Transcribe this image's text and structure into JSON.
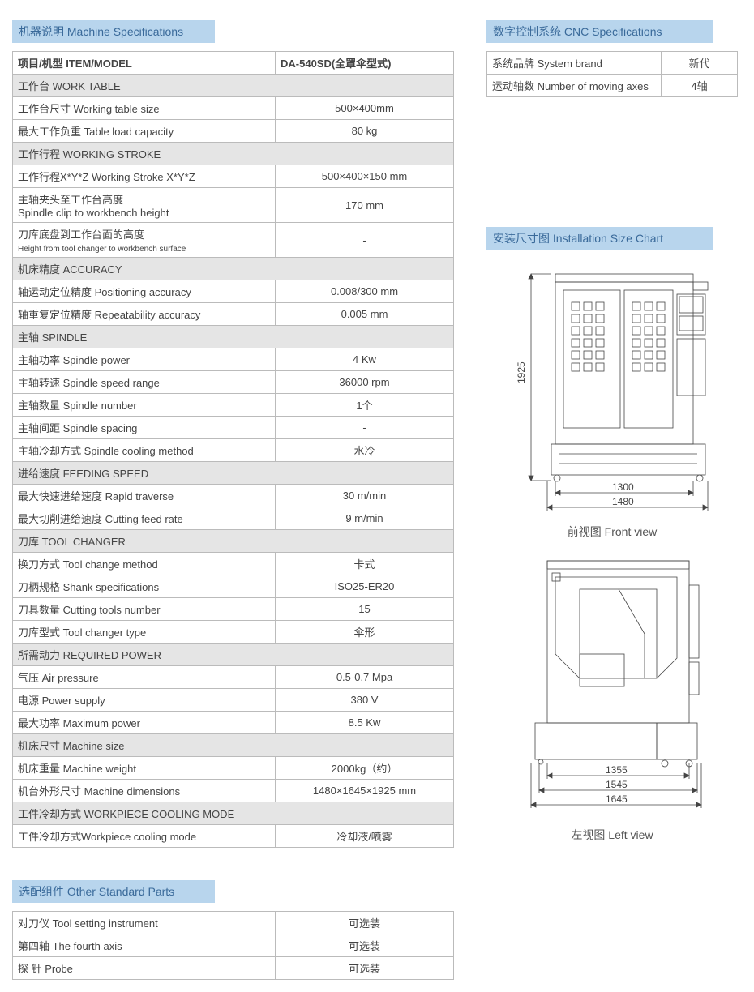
{
  "titles": {
    "machine_spec": "机器说明  Machine Specifications",
    "cnc_spec": "数字控制系统 CNC Specifications",
    "install_chart": "安装尺寸图  Installation Size Chart",
    "other_parts": "选配组件  Other Standard Parts"
  },
  "spec_header": {
    "item": "项目/机型 ITEM/MODEL",
    "model": "DA-540SD(全罩伞型式)"
  },
  "spec_sections": [
    {
      "title": "工作台 WORK TABLE",
      "rows": [
        {
          "label": "工作台尺寸 Working table size",
          "val": "500×400mm"
        },
        {
          "label": "最大工作负重 Table load capacity",
          "val": "80 kg"
        }
      ]
    },
    {
      "title": "工作行程 WORKING STROKE",
      "rows": [
        {
          "label": "工作行程X*Y*Z Working Stroke X*Y*Z",
          "val": "500×400×150 mm"
        },
        {
          "label": "主轴夹头至工作台高度\nSpindle clip to workbench height",
          "val": "170 mm"
        },
        {
          "label": "刀库底盘到工作台面的高度\nHeight from tool changer to workbench surface",
          "val": "-",
          "small": true
        }
      ]
    },
    {
      "title": "机床精度 ACCURACY",
      "rows": [
        {
          "label": "轴运动定位精度 Positioning accuracy",
          "val": "0.008/300 mm"
        },
        {
          "label": "轴重复定位精度 Repeatability accuracy",
          "val": "0.005 mm"
        }
      ]
    },
    {
      "title": "主轴 SPINDLE",
      "rows": [
        {
          "label": "主轴功率 Spindle power",
          "val": "4 Kw"
        },
        {
          "label": "主轴转速 Spindle speed range",
          "val": "36000 rpm"
        },
        {
          "label": "主轴数量 Spindle number",
          "val": "1个"
        },
        {
          "label": "主轴间距 Spindle spacing",
          "val": "-"
        },
        {
          "label": "主轴冷却方式 Spindle cooling method",
          "val": "水冷"
        }
      ]
    },
    {
      "title": "进给速度 FEEDING SPEED",
      "rows": [
        {
          "label": "最大快速进给速度 Rapid traverse",
          "val": "30 m/min"
        },
        {
          "label": "最大切削进给速度 Cutting feed rate",
          "val": "9 m/min"
        }
      ]
    },
    {
      "title": "刀库 TOOL CHANGER",
      "rows": [
        {
          "label": "换刀方式 Tool change method",
          "val": "卡式"
        },
        {
          "label": "刀柄规格 Shank specifications",
          "val": "ISO25-ER20"
        },
        {
          "label": "刀具数量 Cutting tools number",
          "val": "15"
        },
        {
          "label": "刀库型式 Tool changer type",
          "val": "伞形"
        }
      ]
    },
    {
      "title": "所需动力 REQUIRED POWER",
      "rows": [
        {
          "label": "气压 Air pressure",
          "val": "0.5-0.7 Mpa"
        },
        {
          "label": "电源 Power supply",
          "val": "380 V"
        },
        {
          "label": "最大功率 Maximum power",
          "val": "8.5 Kw"
        }
      ]
    },
    {
      "title": "机床尺寸 Machine size",
      "rows": [
        {
          "label": "机床重量 Machine weight",
          "val": "2000kg（约）"
        },
        {
          "label": "机台外形尺寸 Machine dimensions",
          "val": "1480×1645×1925 mm"
        }
      ]
    },
    {
      "title": "工件冷却方式 WORKPIECE COOLING MODE",
      "rows": [
        {
          "label": "工件冷却方式Workpiece cooling mode",
          "val": "冷却液/喷雾"
        }
      ]
    }
  ],
  "other_parts": [
    {
      "label": "对刀仪 Tool setting instrument",
      "val": "可选装"
    },
    {
      "label": "第四轴 The fourth axis",
      "val": "可选装"
    },
    {
      "label": "探  针 Probe",
      "val": "可选装"
    }
  ],
  "cnc": [
    {
      "label": "系统品牌 System brand",
      "val": "新代"
    },
    {
      "label": "运动轴数 Number of moving axes",
      "val": "4轴"
    }
  ],
  "diagrams": {
    "front": {
      "caption": "前视图  Front view",
      "dims": {
        "height": "1925",
        "inner_width": "1300",
        "outer_width": "1480"
      },
      "stroke": "#444",
      "fill": "#fff"
    },
    "left": {
      "caption": "左视图  Left view",
      "dims": {
        "d1": "1355",
        "d2": "1545",
        "d3": "1645"
      },
      "stroke": "#444",
      "fill": "#fff"
    }
  },
  "style": {
    "title_bg": "#b8d5ed",
    "title_color": "#3a6a9a",
    "section_bg": "#e5e5e5",
    "border": "#bbb",
    "font_main": 13,
    "font_title": 14
  }
}
